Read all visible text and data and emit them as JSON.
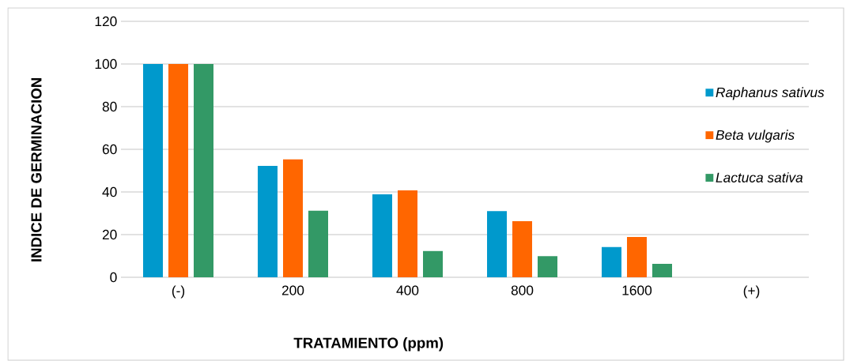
{
  "chart_data": {
    "type": "bar",
    "xlabel": "TRATAMIENTO (ppm)",
    "ylabel": "INDICE DE GERMINACION",
    "categories": [
      "(-)",
      "200",
      "400",
      "800",
      "1600",
      "(+)"
    ],
    "series": [
      {
        "name": "Raphanus sativus",
        "color": "#0099cc",
        "values": [
          100,
          52.2,
          38.9,
          31,
          14.2,
          null
        ]
      },
      {
        "name": "Beta vulgaris",
        "color": "#ff6600",
        "values": [
          100,
          55.3,
          40.7,
          26.3,
          18.9,
          null
        ]
      },
      {
        "name": "Lactuca sativa",
        "color": "#339966",
        "values": [
          100,
          31.2,
          12.3,
          9.9,
          6.3,
          null
        ]
      }
    ],
    "ylim": [
      0,
      120
    ],
    "yticks": [
      0,
      20,
      40,
      60,
      80,
      100,
      120
    ],
    "grid": "y",
    "legend": "right"
  }
}
